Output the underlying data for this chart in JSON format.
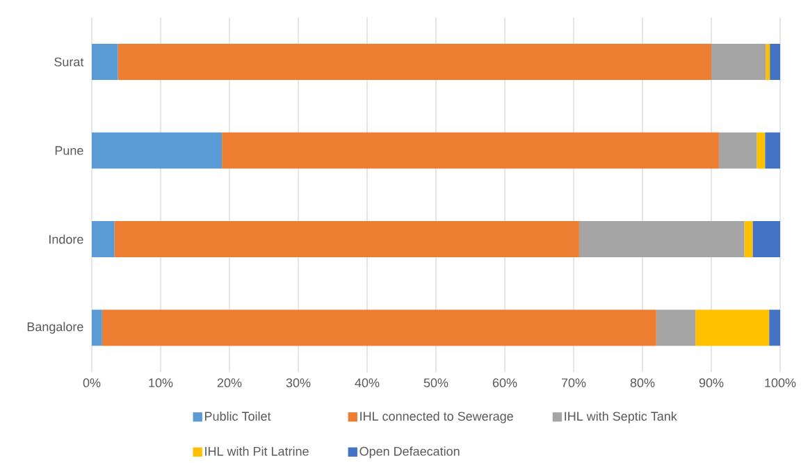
{
  "chart_data": {
    "type": "bar",
    "orientation": "horizontal",
    "stacked": true,
    "categories": [
      "Surat",
      "Pune",
      "Indore",
      "Bangalore"
    ],
    "series": [
      {
        "name": "Public Toilet",
        "color": "#5b9bd5",
        "values": [
          3.8,
          18.9,
          3.3,
          1.5
        ]
      },
      {
        "name": "IHL connected to Sewerage",
        "color": "#ed7d31",
        "values": [
          86.2,
          72.2,
          67.5,
          80.5
        ]
      },
      {
        "name": "IHL with Septic Tank",
        "color": "#a5a5a5",
        "values": [
          7.9,
          5.5,
          24.0,
          5.7
        ]
      },
      {
        "name": "IHL with Pit Latrine",
        "color": "#ffc000",
        "values": [
          0.6,
          1.2,
          1.2,
          10.7
        ]
      },
      {
        "name": "Open Defaecation",
        "color": "#4472c4",
        "values": [
          1.5,
          2.2,
          4.0,
          1.6
        ]
      }
    ],
    "xlim": [
      0,
      100
    ],
    "xticks": [
      {
        "value": 0,
        "label": "0%"
      },
      {
        "value": 10,
        "label": "10%"
      },
      {
        "value": 20,
        "label": "20%"
      },
      {
        "value": 30,
        "label": "30%"
      },
      {
        "value": 40,
        "label": "40%"
      },
      {
        "value": 50,
        "label": "50%"
      },
      {
        "value": 60,
        "label": "60%"
      },
      {
        "value": 70,
        "label": "70%"
      },
      {
        "value": 80,
        "label": "80%"
      },
      {
        "value": 90,
        "label": "90%"
      },
      {
        "value": 100,
        "label": "100%"
      }
    ],
    "grid": "x",
    "legend": "bottom"
  }
}
